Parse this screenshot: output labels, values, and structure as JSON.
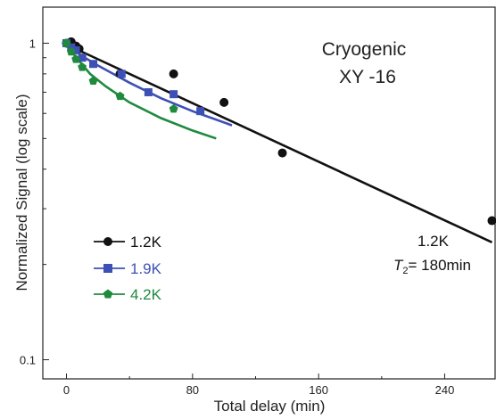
{
  "chart_data": {
    "type": "scatter",
    "title_lines": [
      "Cryogenic",
      "XY -16"
    ],
    "xlabel": "Total delay (min)",
    "ylabel": "Normalized Signal (log scale)",
    "xlim": [
      -15,
      272
    ],
    "ylim": [
      0.087,
      1.3
    ],
    "y_scale": "log",
    "x_ticks": [
      0,
      80,
      160,
      240
    ],
    "x_tick_labels": [
      "0",
      "80",
      "160",
      "240"
    ],
    "y_ticks": [
      1,
      0.1
    ],
    "y_tick_labels": [
      "1",
      "0.1"
    ],
    "grid": false,
    "legend_position": "lower-left",
    "series": [
      {
        "name": "1.2K",
        "color": "#111111",
        "marker": "circle",
        "points": [
          [
            0,
            1.0
          ],
          [
            3,
            1.01
          ],
          [
            6,
            0.98
          ],
          [
            8,
            0.96
          ],
          [
            34,
            0.8
          ],
          [
            68,
            0.8
          ],
          [
            100,
            0.65
          ],
          [
            137,
            0.45
          ],
          [
            270,
            0.275
          ]
        ],
        "fit": [
          [
            0,
            0.99
          ],
          [
            270,
            0.235
          ]
        ]
      },
      {
        "name": "1.9K",
        "color": "#3d50b5",
        "marker": "square",
        "points": [
          [
            0,
            1.0
          ],
          [
            3,
            0.97
          ],
          [
            6,
            0.95
          ],
          [
            10,
            0.9
          ],
          [
            17,
            0.86
          ],
          [
            35,
            0.8
          ],
          [
            52,
            0.7
          ],
          [
            68,
            0.69
          ],
          [
            85,
            0.61
          ]
        ],
        "fit": [
          [
            0,
            1.0
          ],
          [
            5,
            0.95
          ],
          [
            10,
            0.91
          ],
          [
            20,
            0.85
          ],
          [
            40,
            0.75
          ],
          [
            60,
            0.67
          ],
          [
            80,
            0.61
          ],
          [
            105,
            0.55
          ]
        ]
      },
      {
        "name": "4.2K",
        "color": "#1f8a3e",
        "marker": "pentagon",
        "points": [
          [
            0,
            1.0
          ],
          [
            3,
            0.94
          ],
          [
            6,
            0.89
          ],
          [
            10,
            0.84
          ],
          [
            17,
            0.76
          ],
          [
            34,
            0.68
          ],
          [
            68,
            0.62
          ]
        ],
        "fit": [
          [
            0,
            1.0
          ],
          [
            4,
            0.93
          ],
          [
            8,
            0.88
          ],
          [
            15,
            0.8
          ],
          [
            25,
            0.73
          ],
          [
            40,
            0.65
          ],
          [
            60,
            0.58
          ],
          [
            80,
            0.53
          ],
          [
            95,
            0.5
          ]
        ]
      }
    ],
    "annotation": {
      "series_label": "1.2K",
      "t2_symbol": "T",
      "t2_subscript": "2",
      "t2_value": "= 180min"
    }
  }
}
